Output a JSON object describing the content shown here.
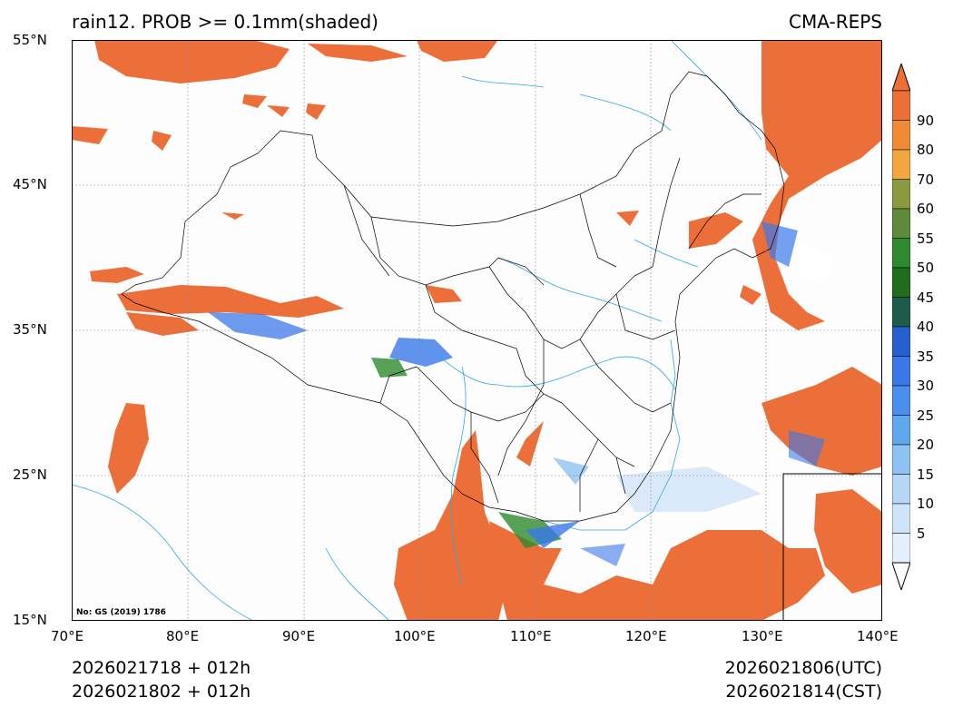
{
  "title_left": "rain12. PROB >= 0.1mm(shaded)",
  "title_right": "CMA-REPS",
  "lat_ticks": [
    "55°N",
    "45°N",
    "35°N",
    "25°N",
    "15°N"
  ],
  "lon_ticks": [
    "70°E",
    "80°E",
    "90°E",
    "100°E",
    "110°E",
    "120°E",
    "130°E",
    "140°E"
  ],
  "map_note": "No: GS (2019) 1786",
  "footer": {
    "init_utc": "2026021718  +  012h",
    "init_cst": "2026021802  +  012h",
    "valid_utc": "2026021806(UTC)",
    "valid_cst": "2026021814(CST)"
  },
  "colorbar": {
    "ticks": [
      "5",
      "10",
      "15",
      "20",
      "25",
      "30",
      "35",
      "40",
      "45",
      "50",
      "55",
      "60",
      "70",
      "80",
      "90"
    ],
    "colors": [
      "#e3f0fb",
      "#cfe4f8",
      "#b6d6f6",
      "#8ec2f3",
      "#5fa8ee",
      "#4a8ff0",
      "#3a78ea",
      "#2460d0",
      "#1b5c4a",
      "#1e6e1e",
      "#2d8a2d",
      "#5e8a3a",
      "#8a9a40",
      "#f3a640",
      "#f08a35",
      "#ec6f35"
    ],
    "over_color": "#ec6f35",
    "under_color": "#ffffff"
  },
  "colors": {
    "rain_orange": "#ec6f3a",
    "rain_blue": "#3a78ea",
    "rain_green": "#2d8a2d",
    "river": "#29a9e0",
    "border": "#000000"
  }
}
